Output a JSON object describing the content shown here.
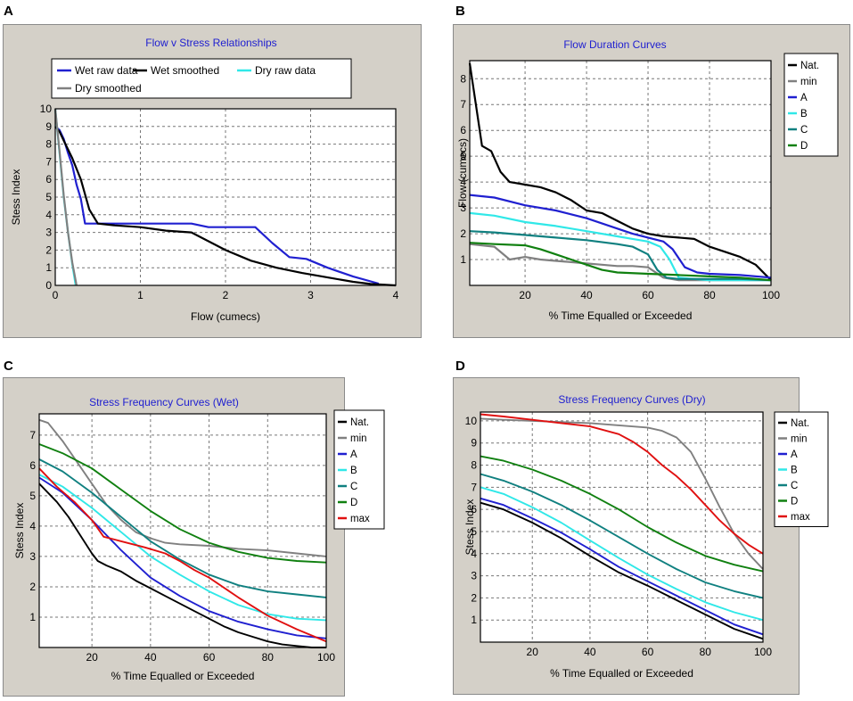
{
  "panels": [
    {
      "letter": "A"
    },
    {
      "letter": "B"
    },
    {
      "letter": "C"
    },
    {
      "letter": "D"
    }
  ],
  "chart_data": [
    {
      "type": "line",
      "title": "Flow v Stress Relationships",
      "xlabel": "Flow (cumecs)",
      "ylabel": "Stess Index",
      "xlim": [
        0,
        4
      ],
      "ylim": [
        0,
        10
      ],
      "xticks": [
        0,
        1,
        2,
        3,
        4
      ],
      "yticks": [
        0,
        1,
        2,
        3,
        4,
        5,
        6,
        7,
        8,
        9,
        10
      ],
      "grid": true,
      "legend_position": "top",
      "series": [
        {
          "name": "Wet raw data",
          "color": "#2020d0",
          "x": [
            0,
            0.05,
            0.1,
            0.15,
            0.2,
            0.25,
            0.3,
            0.35,
            0.4,
            0.5,
            0.7,
            1.0,
            1.3,
            1.6,
            1.8,
            2.0,
            2.2,
            2.35,
            2.55,
            2.75,
            2.95,
            3.2,
            3.5,
            3.8
          ],
          "y": [
            9.0,
            8.8,
            8.3,
            7.5,
            6.8,
            5.7,
            4.9,
            3.5,
            3.5,
            3.5,
            3.5,
            3.5,
            3.5,
            3.5,
            3.3,
            3.3,
            3.3,
            3.3,
            2.4,
            1.6,
            1.5,
            1.0,
            0.5,
            0.1
          ]
        },
        {
          "name": "Wet smoothed",
          "color": "#000000",
          "x": [
            0,
            0.05,
            0.1,
            0.2,
            0.3,
            0.4,
            0.5,
            0.7,
            1.0,
            1.3,
            1.6,
            1.8,
            2.0,
            2.3,
            2.6,
            2.9,
            3.2,
            3.5,
            3.7,
            4.0
          ],
          "y": [
            9.0,
            8.7,
            8.2,
            7.2,
            6.0,
            4.3,
            3.5,
            3.4,
            3.3,
            3.1,
            3.0,
            2.5,
            2.0,
            1.4,
            1.0,
            0.7,
            0.45,
            0.2,
            0.08,
            0.0
          ]
        },
        {
          "name": "Dry raw data",
          "color": "#30e8e8",
          "x": [
            0,
            0.05,
            0.1,
            0.15,
            0.2,
            0.24
          ],
          "y": [
            10,
            7.5,
            5.0,
            3.0,
            1.2,
            0.0
          ]
        },
        {
          "name": "Dry smoothed",
          "color": "#808080",
          "x": [
            0,
            0.05,
            0.1,
            0.15,
            0.2,
            0.25
          ],
          "y": [
            10,
            7.6,
            5.1,
            3.0,
            1.3,
            0.0
          ]
        }
      ]
    },
    {
      "type": "line",
      "title": "Flow Duration Curves",
      "xlabel": "% Time Equalled or Exceeded",
      "ylabel": "Flow (cumecs)",
      "xlim": [
        2,
        100
      ],
      "ylim": [
        0,
        8.7
      ],
      "xticks": [
        20,
        40,
        60,
        80,
        100
      ],
      "yticks": [
        1,
        2,
        3,
        4,
        5,
        6,
        7,
        8
      ],
      "grid": true,
      "legend_position": "right",
      "series": [
        {
          "name": "Nat.",
          "color": "#000000",
          "x": [
            2,
            4,
            6,
            9,
            12,
            15,
            20,
            25,
            30,
            35,
            40,
            45,
            50,
            55,
            60,
            65,
            70,
            75,
            80,
            85,
            90,
            95,
            100
          ],
          "y": [
            8.6,
            7.0,
            5.4,
            5.2,
            4.4,
            4.0,
            3.9,
            3.8,
            3.6,
            3.3,
            2.9,
            2.8,
            2.5,
            2.2,
            2.0,
            1.9,
            1.85,
            1.8,
            1.5,
            1.3,
            1.1,
            0.8,
            0.2
          ]
        },
        {
          "name": "min",
          "color": "#808080",
          "x": [
            2,
            10,
            15,
            20,
            25,
            30,
            35,
            40,
            45,
            50,
            55,
            60,
            65,
            70,
            80,
            90,
            100
          ],
          "y": [
            1.6,
            1.5,
            1.0,
            1.1,
            1.0,
            0.95,
            0.9,
            0.85,
            0.8,
            0.75,
            0.75,
            0.7,
            0.3,
            0.2,
            0.2,
            0.2,
            0.2
          ]
        },
        {
          "name": "A",
          "color": "#2020d0",
          "x": [
            2,
            10,
            20,
            30,
            40,
            50,
            55,
            60,
            65,
            68,
            72,
            76,
            80,
            90,
            100
          ],
          "y": [
            3.5,
            3.4,
            3.1,
            2.9,
            2.6,
            2.2,
            2.0,
            1.85,
            1.7,
            1.4,
            0.7,
            0.5,
            0.45,
            0.4,
            0.3
          ]
        },
        {
          "name": "B",
          "color": "#30e8e8",
          "x": [
            2,
            10,
            20,
            30,
            40,
            50,
            55,
            60,
            64,
            67,
            70,
            75,
            80,
            90,
            100
          ],
          "y": [
            2.8,
            2.7,
            2.45,
            2.3,
            2.1,
            1.9,
            1.8,
            1.7,
            1.5,
            1.0,
            0.3,
            0.25,
            0.2,
            0.2,
            0.2
          ]
        },
        {
          "name": "C",
          "color": "#108080",
          "x": [
            2,
            10,
            20,
            30,
            40,
            50,
            55,
            60,
            63,
            66,
            70,
            80,
            90,
            100
          ],
          "y": [
            2.1,
            2.05,
            1.95,
            1.85,
            1.75,
            1.6,
            1.5,
            1.2,
            0.6,
            0.3,
            0.25,
            0.25,
            0.25,
            0.2
          ]
        },
        {
          "name": "D",
          "color": "#108010",
          "x": [
            2,
            10,
            20,
            25,
            30,
            35,
            40,
            45,
            50,
            60,
            70,
            80,
            90,
            100
          ],
          "y": [
            1.65,
            1.6,
            1.55,
            1.4,
            1.2,
            1.0,
            0.8,
            0.6,
            0.5,
            0.45,
            0.4,
            0.35,
            0.3,
            0.2
          ]
        }
      ]
    },
    {
      "type": "line",
      "title": "Stress Frequency Curves (Wet)",
      "xlabel": "% Time Equalled or Exceeded",
      "ylabel": "Stess Index",
      "xlim": [
        2,
        100
      ],
      "ylim": [
        0,
        7.7
      ],
      "xticks": [
        20,
        40,
        60,
        80,
        100
      ],
      "yticks": [
        1,
        2,
        3,
        4,
        5,
        6,
        7
      ],
      "grid": true,
      "legend_position": "right",
      "series": [
        {
          "name": "Nat.",
          "color": "#000000",
          "x": [
            2,
            8,
            12,
            16,
            20,
            22,
            25,
            30,
            35,
            40,
            45,
            50,
            55,
            60,
            65,
            70,
            75,
            80,
            85,
            90,
            95,
            100
          ],
          "y": [
            5.4,
            4.8,
            4.3,
            3.7,
            3.1,
            2.85,
            2.7,
            2.5,
            2.2,
            1.95,
            1.7,
            1.45,
            1.2,
            0.95,
            0.7,
            0.5,
            0.35,
            0.2,
            0.1,
            0.05,
            0.0,
            0.0
          ]
        },
        {
          "name": "min",
          "color": "#808080",
          "x": [
            2,
            5,
            10,
            15,
            20,
            25,
            30,
            35,
            40,
            45,
            50,
            60,
            70,
            80,
            90,
            100
          ],
          "y": [
            7.5,
            7.4,
            6.8,
            6.1,
            5.4,
            4.7,
            4.2,
            3.8,
            3.6,
            3.45,
            3.4,
            3.35,
            3.25,
            3.2,
            3.1,
            3.0
          ]
        },
        {
          "name": "A",
          "color": "#2020d0",
          "x": [
            2,
            10,
            20,
            30,
            40,
            50,
            60,
            70,
            80,
            90,
            100
          ],
          "y": [
            5.6,
            5.1,
            4.2,
            3.2,
            2.3,
            1.7,
            1.2,
            0.85,
            0.6,
            0.4,
            0.3
          ]
        },
        {
          "name": "B",
          "color": "#30e8e8",
          "x": [
            2,
            10,
            20,
            30,
            40,
            50,
            60,
            70,
            80,
            90,
            100
          ],
          "y": [
            5.7,
            5.3,
            4.6,
            3.8,
            3.0,
            2.4,
            1.85,
            1.4,
            1.1,
            0.95,
            0.9
          ]
        },
        {
          "name": "C",
          "color": "#108080",
          "x": [
            2,
            10,
            20,
            30,
            40,
            50,
            60,
            70,
            80,
            90,
            100
          ],
          "y": [
            6.2,
            5.8,
            5.1,
            4.3,
            3.5,
            2.9,
            2.4,
            2.05,
            1.85,
            1.75,
            1.65
          ]
        },
        {
          "name": "D",
          "color": "#108010",
          "x": [
            2,
            10,
            20,
            30,
            40,
            50,
            60,
            70,
            80,
            90,
            100
          ],
          "y": [
            6.7,
            6.4,
            5.9,
            5.2,
            4.5,
            3.9,
            3.45,
            3.15,
            2.95,
            2.85,
            2.8
          ]
        },
        {
          "name": "max",
          "color": "#e01010",
          "x": [
            2,
            8,
            14,
            20,
            24,
            30,
            38,
            45,
            50,
            55,
            60,
            70,
            80,
            90,
            100
          ],
          "y": [
            5.9,
            5.3,
            4.8,
            4.2,
            3.65,
            3.5,
            3.3,
            3.1,
            2.85,
            2.55,
            2.3,
            1.65,
            1.05,
            0.6,
            0.2
          ]
        }
      ]
    },
    {
      "type": "line",
      "title": "Stress Frequency Curves (Dry)",
      "xlabel": "% Time Equalled or Exceeded",
      "ylabel": "Stess Index",
      "xlim": [
        2,
        100
      ],
      "ylim": [
        0,
        10.4
      ],
      "xticks": [
        20,
        40,
        60,
        80,
        100
      ],
      "yticks": [
        1,
        2,
        3,
        4,
        5,
        6,
        7,
        8,
        9,
        10
      ],
      "grid": true,
      "legend_position": "right",
      "series": [
        {
          "name": "Nat.",
          "color": "#000000",
          "x": [
            2,
            10,
            20,
            30,
            40,
            50,
            60,
            70,
            80,
            90,
            100
          ],
          "y": [
            6.3,
            6.0,
            5.4,
            4.7,
            3.9,
            3.15,
            2.55,
            1.9,
            1.25,
            0.6,
            0.15
          ]
        },
        {
          "name": "min",
          "color": "#808080",
          "x": [
            2,
            10,
            20,
            30,
            40,
            50,
            60,
            65,
            70,
            75,
            80,
            85,
            90,
            95,
            100
          ],
          "y": [
            10.1,
            10.05,
            10.0,
            9.95,
            9.9,
            9.8,
            9.7,
            9.55,
            9.25,
            8.6,
            7.4,
            6.1,
            4.9,
            4.0,
            3.3
          ]
        },
        {
          "name": "A",
          "color": "#2020d0",
          "x": [
            2,
            10,
            20,
            30,
            40,
            50,
            60,
            70,
            80,
            90,
            100
          ],
          "y": [
            6.5,
            6.2,
            5.6,
            4.95,
            4.2,
            3.4,
            2.75,
            2.1,
            1.45,
            0.8,
            0.35
          ]
        },
        {
          "name": "B",
          "color": "#30e8e8",
          "x": [
            2,
            10,
            20,
            30,
            40,
            50,
            60,
            70,
            80,
            90,
            100
          ],
          "y": [
            7.0,
            6.7,
            6.1,
            5.4,
            4.6,
            3.8,
            3.05,
            2.4,
            1.8,
            1.35,
            1.0
          ]
        },
        {
          "name": "C",
          "color": "#108080",
          "x": [
            2,
            10,
            20,
            30,
            40,
            50,
            60,
            70,
            80,
            90,
            100
          ],
          "y": [
            7.6,
            7.3,
            6.8,
            6.2,
            5.5,
            4.75,
            4.0,
            3.3,
            2.7,
            2.3,
            2.0
          ]
        },
        {
          "name": "D",
          "color": "#108010",
          "x": [
            2,
            10,
            20,
            30,
            40,
            50,
            60,
            70,
            80,
            90,
            100
          ],
          "y": [
            8.4,
            8.2,
            7.8,
            7.3,
            6.7,
            6.0,
            5.2,
            4.5,
            3.9,
            3.5,
            3.2
          ]
        },
        {
          "name": "max",
          "color": "#e01010",
          "x": [
            2,
            10,
            20,
            30,
            40,
            50,
            55,
            60,
            65,
            70,
            75,
            80,
            85,
            90,
            95,
            100
          ],
          "y": [
            10.3,
            10.2,
            10.05,
            9.9,
            9.75,
            9.4,
            9.05,
            8.6,
            8.0,
            7.5,
            6.9,
            6.2,
            5.5,
            4.9,
            4.4,
            4.0
          ]
        }
      ]
    }
  ]
}
